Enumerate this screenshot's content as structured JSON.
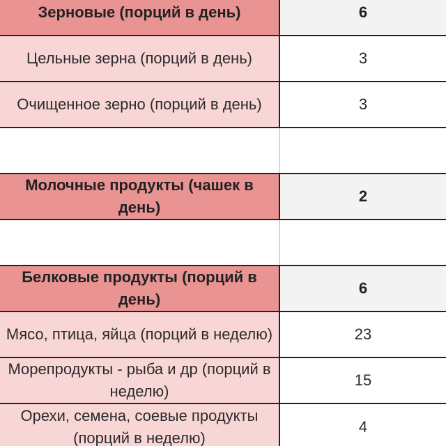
{
  "rows": [
    {
      "type": "header",
      "label": "Зерновые (порций в день)",
      "value": "6"
    },
    {
      "type": "sub",
      "label": "Цельные зерна (порций в день)",
      "value": "3"
    },
    {
      "type": "sub",
      "label": "Очищенное зерно (порций в день)",
      "value": "3"
    },
    {
      "type": "spacer",
      "label": "",
      "value": ""
    },
    {
      "type": "header",
      "label": "Молочные продукты (чашек в день)",
      "value": "2"
    },
    {
      "type": "spacer",
      "label": "",
      "value": ""
    },
    {
      "type": "header",
      "label": "Белковые продукты (порций в день)",
      "value": "6"
    },
    {
      "type": "sub",
      "label": "Мясо, птица, яйца (порций в неделю)",
      "value": "23"
    },
    {
      "type": "sub",
      "label": "Морепродукты - рыба и др (порций в неделю)",
      "value": "15"
    },
    {
      "type": "sub",
      "label": "Орехи, семена, соевые продукты (порций в неделю)",
      "value": "4"
    }
  ]
}
